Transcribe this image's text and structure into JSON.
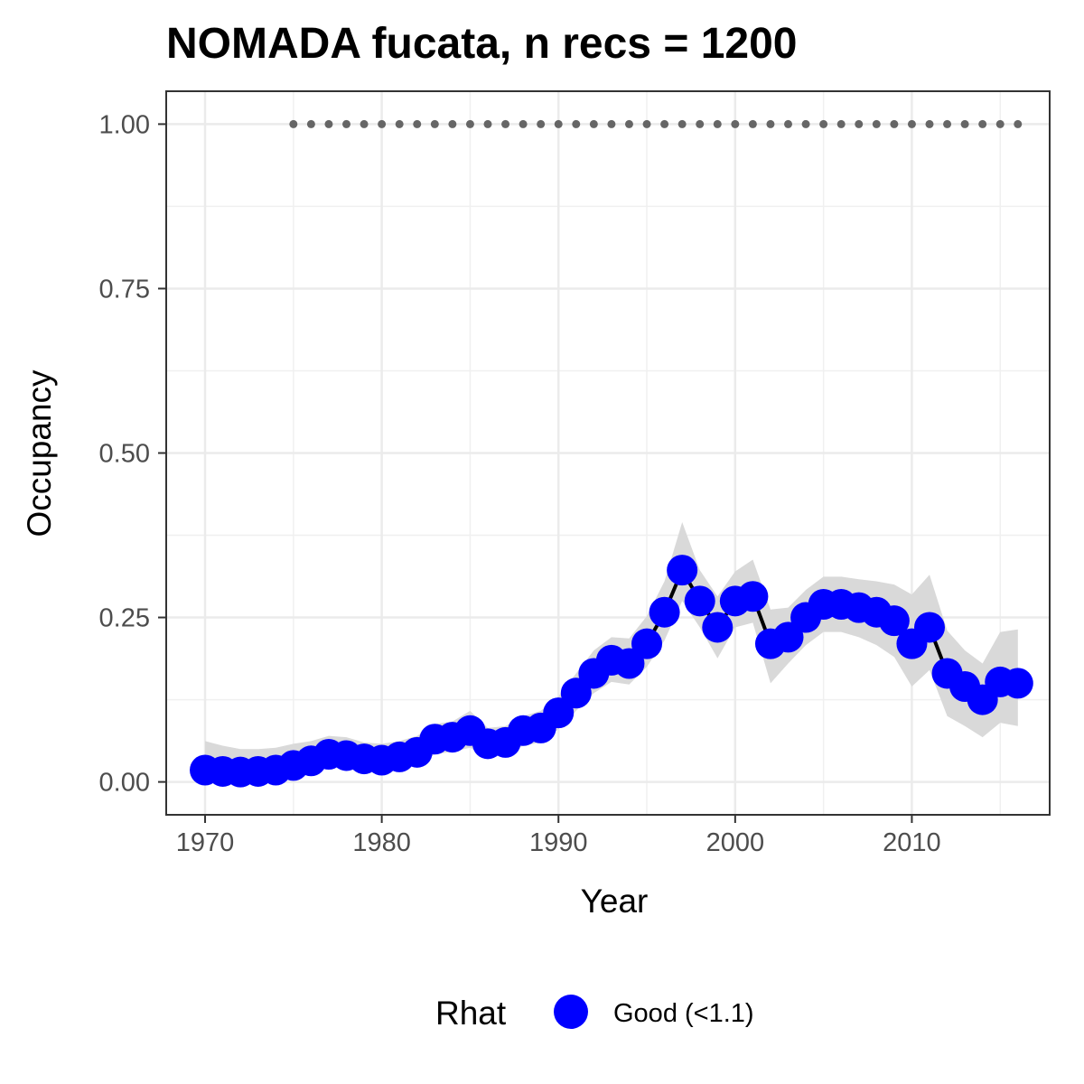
{
  "chart_data": {
    "type": "line",
    "title": "NOMADA fucata, n recs = 1200",
    "xlabel": "Year",
    "ylabel": "Occupancy",
    "xlim": [
      1967.8,
      2017.8
    ],
    "ylim": [
      -0.05,
      1.05
    ],
    "x_ticks": [
      1970,
      1980,
      1990,
      2000,
      2010
    ],
    "x_tick_labels": [
      "1970",
      "1980",
      "1990",
      "2000",
      "2010"
    ],
    "y_ticks": [
      0,
      0.25,
      0.5,
      0.75,
      1.0
    ],
    "y_tick_labels": [
      "0.00",
      "0.25",
      "0.50",
      "0.75",
      "1.00"
    ],
    "grid": true,
    "legend_position": "bottom",
    "legend": {
      "title": "Rhat",
      "entries": [
        {
          "label": "Good (<1.1)",
          "color": "#0000ff"
        }
      ]
    },
    "colors": {
      "points": "#0000ff",
      "line": "#000000",
      "ribbon": "#d9d9d9",
      "dotted_line": "#666666"
    },
    "series": [
      {
        "x": [
          1970,
          1971,
          1972,
          1973,
          1974,
          1975,
          1976,
          1977,
          1978,
          1979,
          1980,
          1981,
          1982,
          1983,
          1984,
          1985,
          1986,
          1987,
          1988,
          1989,
          1990,
          1991,
          1992,
          1993,
          1994,
          1995,
          1996,
          1997,
          1998,
          1999,
          2000,
          2001,
          2002,
          2003,
          2004,
          2005,
          2006,
          2007,
          2008,
          2009,
          2010,
          2011,
          2012,
          2013,
          2014,
          2015,
          2016
        ],
        "values": [
          0.018,
          0.016,
          0.015,
          0.016,
          0.018,
          0.025,
          0.032,
          0.042,
          0.04,
          0.035,
          0.033,
          0.038,
          0.045,
          0.065,
          0.068,
          0.078,
          0.058,
          0.06,
          0.078,
          0.082,
          0.105,
          0.135,
          0.165,
          0.185,
          0.18,
          0.21,
          0.258,
          0.322,
          0.275,
          0.235,
          0.275,
          0.282,
          0.21,
          0.22,
          0.25,
          0.27,
          0.27,
          0.265,
          0.258,
          0.245,
          0.21,
          0.235,
          0.165,
          0.145,
          0.125,
          0.152,
          0.15
        ],
        "lower": [
          0.005,
          0.004,
          0.004,
          0.005,
          0.006,
          0.01,
          0.015,
          0.022,
          0.022,
          0.018,
          0.017,
          0.02,
          0.025,
          0.042,
          0.046,
          0.052,
          0.038,
          0.04,
          0.055,
          0.06,
          0.08,
          0.108,
          0.135,
          0.152,
          0.148,
          0.175,
          0.215,
          0.275,
          0.235,
          0.188,
          0.235,
          0.242,
          0.15,
          0.18,
          0.208,
          0.228,
          0.228,
          0.22,
          0.208,
          0.19,
          0.145,
          0.17,
          0.1,
          0.085,
          0.068,
          0.09,
          0.085
        ],
        "upper": [
          0.062,
          0.055,
          0.05,
          0.05,
          0.052,
          0.058,
          0.062,
          0.07,
          0.068,
          0.06,
          0.058,
          0.062,
          0.07,
          0.088,
          0.092,
          0.108,
          0.082,
          0.085,
          0.1,
          0.108,
          0.13,
          0.165,
          0.2,
          0.22,
          0.218,
          0.252,
          0.305,
          0.395,
          0.322,
          0.282,
          0.32,
          0.338,
          0.262,
          0.265,
          0.292,
          0.312,
          0.312,
          0.308,
          0.305,
          0.3,
          0.285,
          0.315,
          0.23,
          0.2,
          0.18,
          0.228,
          0.232
        ]
      }
    ],
    "reference_line": {
      "style": "dotted",
      "y": 1.0,
      "x": [
        1975,
        1976,
        1977,
        1978,
        1979,
        1980,
        1981,
        1982,
        1983,
        1984,
        1985,
        1986,
        1987,
        1988,
        1989,
        1990,
        1991,
        1992,
        1993,
        1994,
        1995,
        1996,
        1997,
        1998,
        1999,
        2000,
        2001,
        2002,
        2003,
        2004,
        2005,
        2006,
        2007,
        2008,
        2009,
        2010,
        2011,
        2012,
        2013,
        2014,
        2015,
        2016
      ]
    }
  }
}
